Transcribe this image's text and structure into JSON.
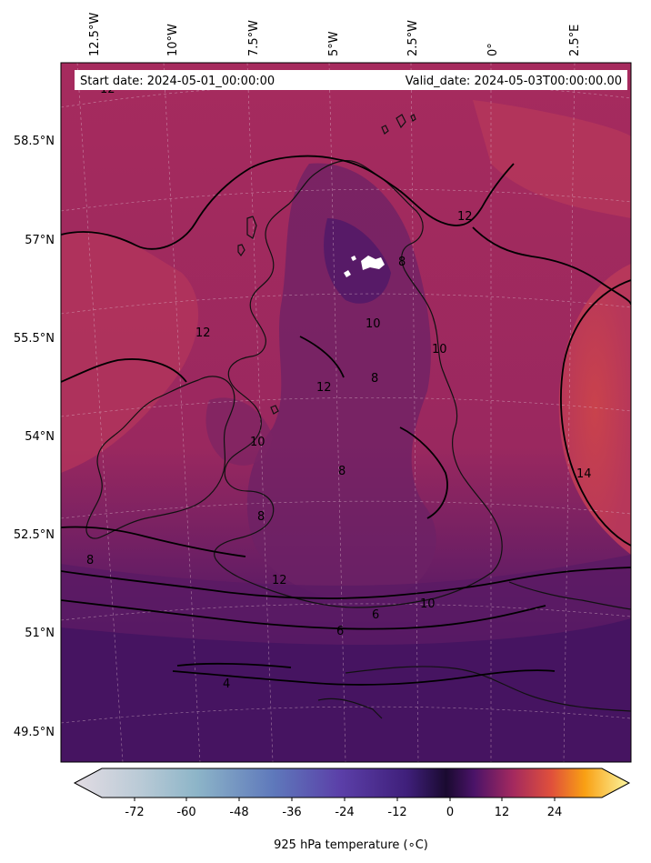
{
  "header": {
    "start_label": "Start date: 2024-05-01_00:00:00",
    "valid_label": "Valid_date: 2024-05-03T00:00:00.00"
  },
  "map": {
    "region": "British Isles",
    "longitude_labels": [
      "12.5°W",
      "10°W",
      "7.5°W",
      "5°W",
      "2.5°W",
      "0°",
      "2.5°E"
    ],
    "latitude_labels": [
      "58.5°N",
      "57°N",
      "55.5°N",
      "54°N",
      "52.5°N",
      "51°N",
      "49.5°N"
    ],
    "contour_labels": [
      "12",
      "12",
      "12",
      "12",
      "10",
      "10",
      "10",
      "8",
      "8",
      "8",
      "8",
      "8",
      "6",
      "6",
      "4",
      "14",
      "12",
      "10"
    ],
    "colors": {
      "cool_purple": "#4a1668",
      "mid_magenta": "#8e2866",
      "warm_red": "#c8404f"
    }
  },
  "colorbar": {
    "label": "925 hPa temperature (∘C)",
    "ticks": [
      "-72",
      "-60",
      "-48",
      "-36",
      "-24",
      "-12",
      "0",
      "12",
      "24"
    ],
    "colormap": "inferno with cool grey-blue extension"
  }
}
